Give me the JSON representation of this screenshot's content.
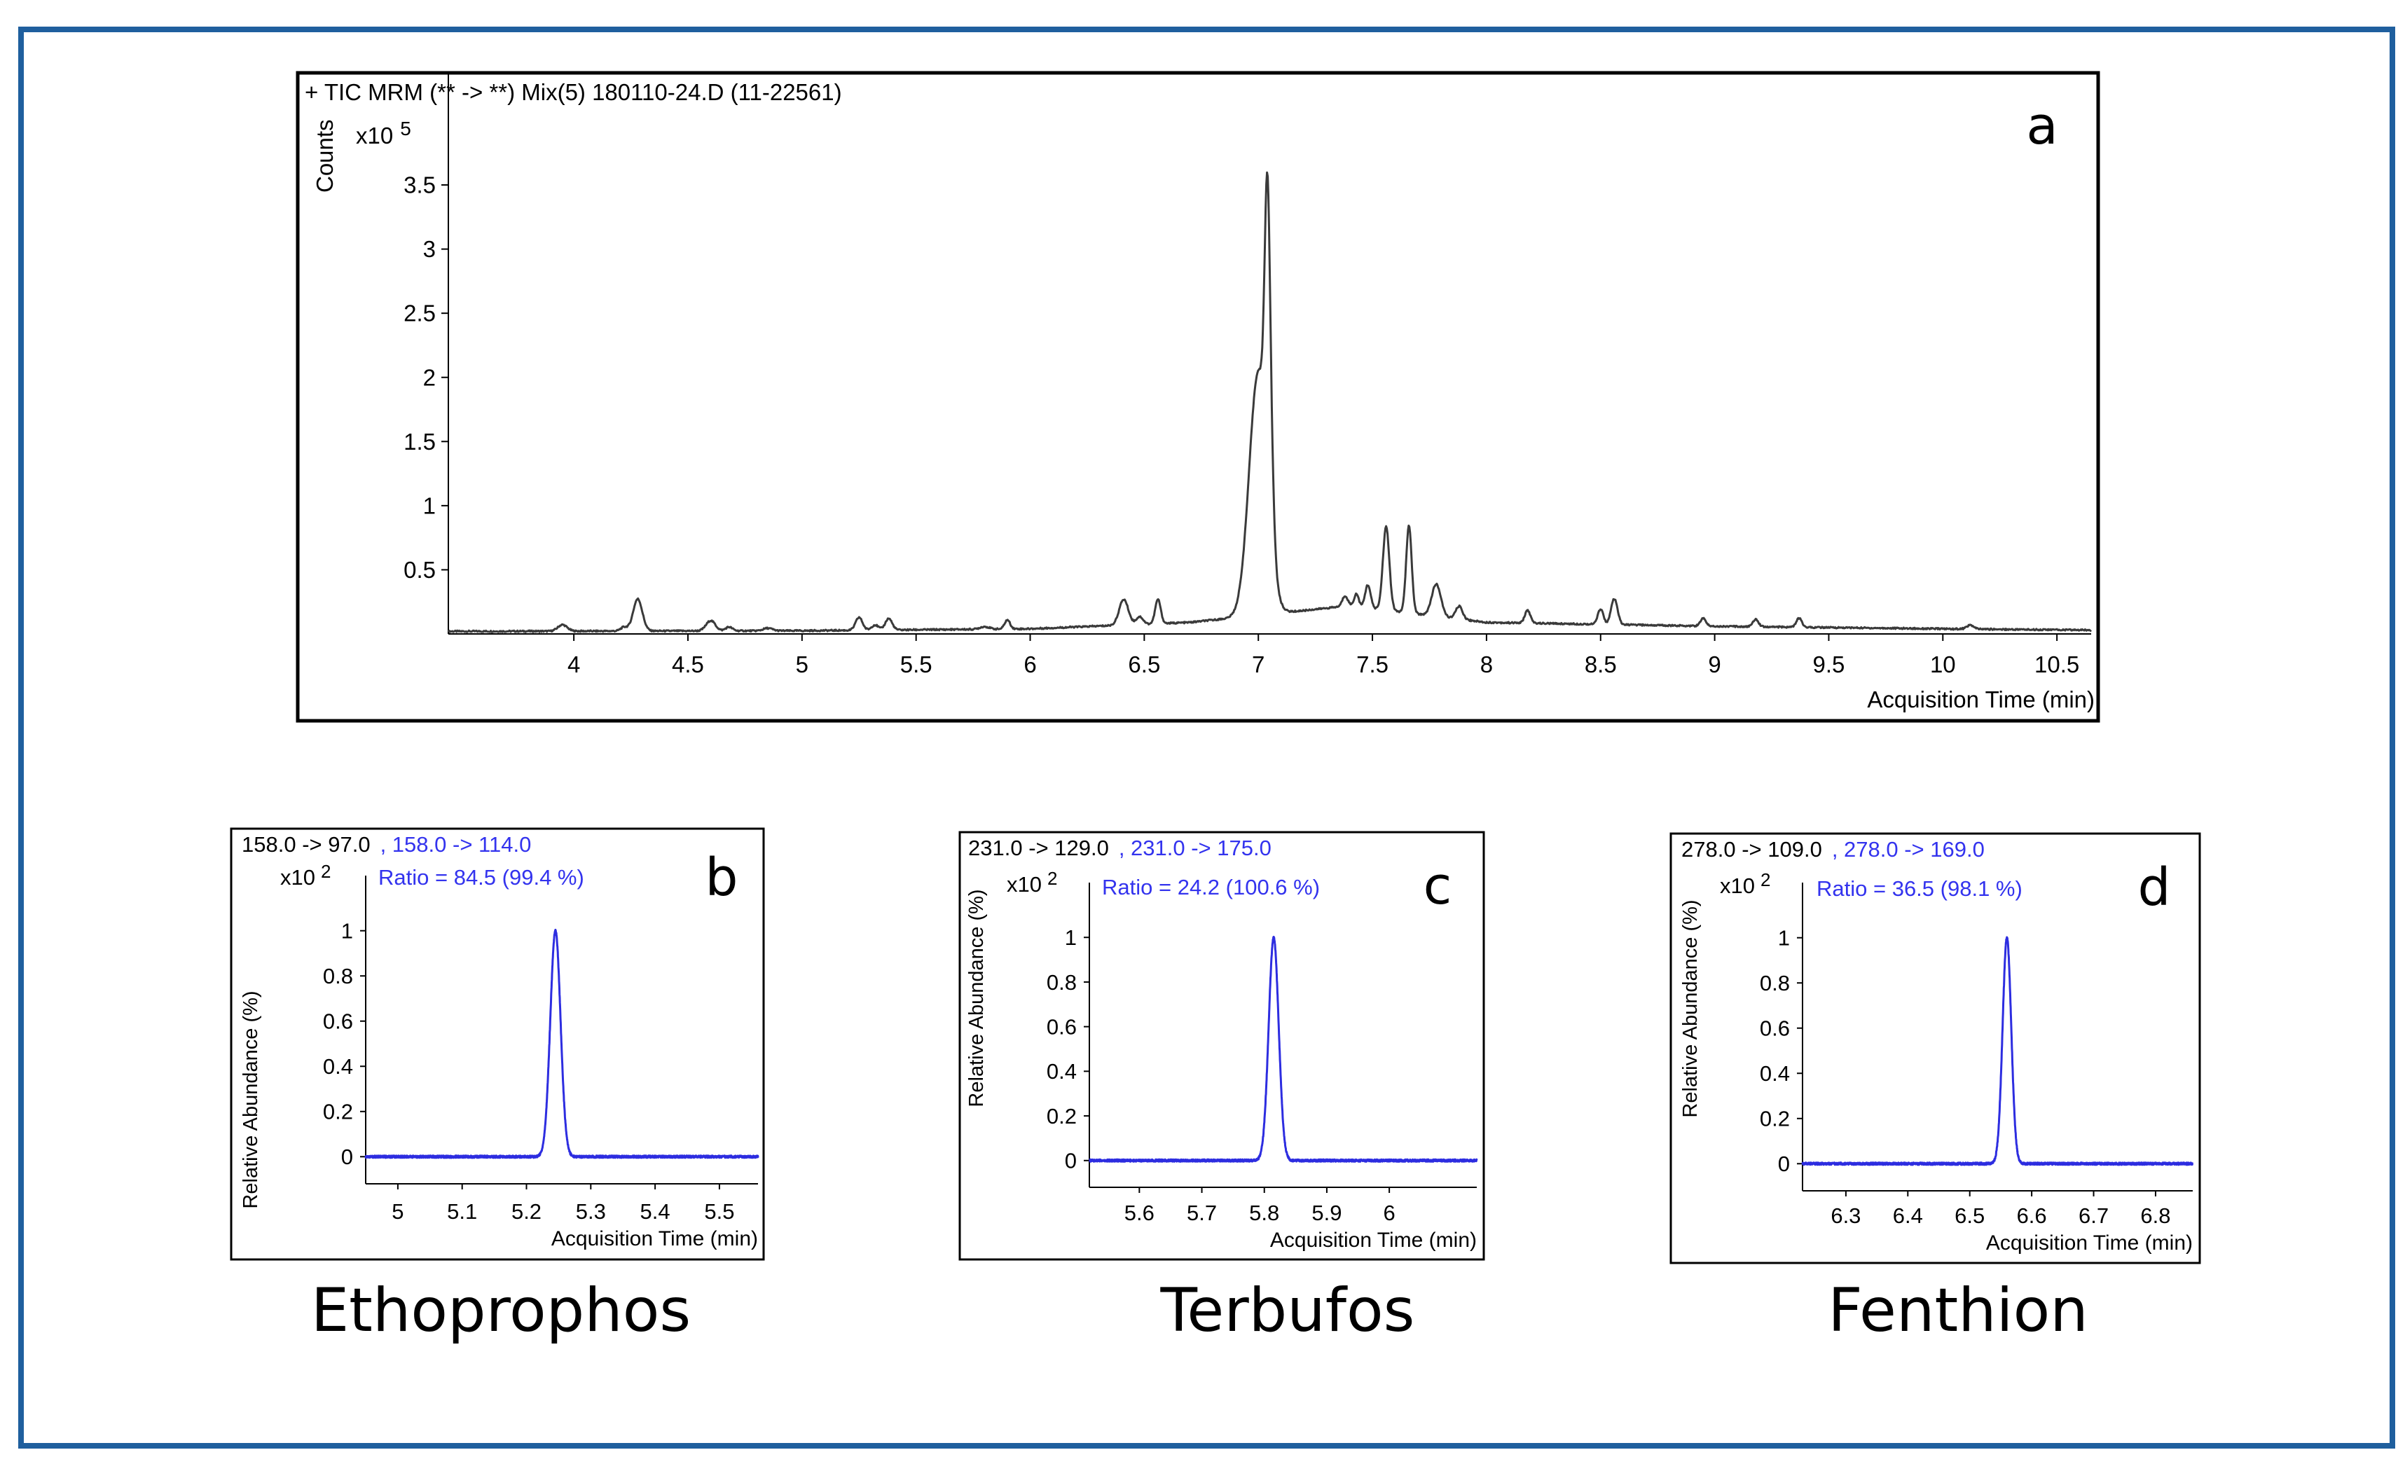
{
  "panels": [
    {
      "letter": "a",
      "header": "+ TIC MRM (** -> **) Mix(5) 180110-24.D (11-22561)",
      "multiplier_base": "x10",
      "multiplier_exp": "5",
      "ylabel": "Counts",
      "xlabel": "Acquisition Time (min)"
    },
    {
      "letter": "b",
      "transition_black": "158.0 -> 97.0",
      "transition_blue": ", 158.0 -> 114.0",
      "multiplier_base": "x10",
      "multiplier_exp": "2",
      "ratio": "Ratio = 84.5 (99.4 %)",
      "ylabel": "Relative Abundance (%)",
      "xlabel": "Acquisition Time (min)",
      "compound": "Ethoprophos"
    },
    {
      "letter": "c",
      "transition_black": "231.0 -> 129.0",
      "transition_blue": ", 231.0 -> 175.0",
      "multiplier_base": "x10",
      "multiplier_exp": "2",
      "ratio": "Ratio = 24.2 (100.6 %)",
      "ylabel": "Relative Abundance (%)",
      "xlabel": "Acquisition Time (min)",
      "compound": "Terbufos"
    },
    {
      "letter": "d",
      "transition_black": "278.0 -> 109.0",
      "transition_blue": ", 278.0 -> 169.0",
      "multiplier_base": "x10",
      "multiplier_exp": "2",
      "ratio": "Ratio = 36.5 (98.1 %)",
      "ylabel": "Relative Abundance (%)",
      "xlabel": "Acquisition Time (min)",
      "compound": "Fenthion"
    }
  ],
  "colors": {
    "frame": "#1f5f9e",
    "trace_main": "#3a3a3a",
    "trace_blue": "#2d2de0",
    "ratio_blue": "#3333ee"
  },
  "chart_data": [
    {
      "type": "line",
      "xlabel": "Acquisition Time (min)",
      "ylabel": "Counts",
      "xlim": [
        3.45,
        10.65
      ],
      "ylim": [
        0,
        4.15
      ],
      "xticks": [
        4,
        4.5,
        5,
        5.5,
        6,
        6.5,
        7,
        7.5,
        8,
        8.5,
        9,
        9.5,
        10,
        10.5
      ],
      "xtick_labels": [
        "4",
        "4.5",
        "5",
        "5.5",
        "6",
        "6.5",
        "7",
        "7.5",
        "8",
        "8.5",
        "9",
        "9.5",
        "10",
        "10.5"
      ],
      "yticks": [
        0.5,
        1,
        1.5,
        2,
        2.5,
        3,
        3.5
      ],
      "ytick_labels": [
        "0.5",
        "1",
        "1.5",
        "2",
        "2.5",
        "3",
        "3.5"
      ],
      "baseline": {
        "x": [
          3.45,
          5.0,
          6.0,
          6.7,
          7.4,
          8.0,
          9.0,
          10.0,
          10.65
        ],
        "y": [
          0.02,
          0.025,
          0.04,
          0.09,
          0.22,
          0.09,
          0.06,
          0.04,
          0.03
        ]
      },
      "peaks": [
        {
          "x": 3.95,
          "height": 0.05,
          "width": 0.02
        },
        {
          "x": 4.22,
          "height": 0.03,
          "width": 0.015
        },
        {
          "x": 4.28,
          "height": 0.25,
          "width": 0.02
        },
        {
          "x": 4.6,
          "height": 0.08,
          "width": 0.02
        },
        {
          "x": 4.68,
          "height": 0.03,
          "width": 0.015
        },
        {
          "x": 4.85,
          "height": 0.02,
          "width": 0.02
        },
        {
          "x": 5.25,
          "height": 0.1,
          "width": 0.015
        },
        {
          "x": 5.32,
          "height": 0.04,
          "width": 0.015
        },
        {
          "x": 5.38,
          "height": 0.09,
          "width": 0.015
        },
        {
          "x": 5.8,
          "height": 0.02,
          "width": 0.02
        },
        {
          "x": 5.9,
          "height": 0.07,
          "width": 0.012
        },
        {
          "x": 6.41,
          "height": 0.2,
          "width": 0.02
        },
        {
          "x": 6.48,
          "height": 0.06,
          "width": 0.015
        },
        {
          "x": 6.56,
          "height": 0.19,
          "width": 0.012
        },
        {
          "x": 7.0,
          "height": 1.9,
          "width": 0.04
        },
        {
          "x": 7.04,
          "height": 2.2,
          "width": 0.012
        },
        {
          "x": 7.06,
          "height": 0.35,
          "width": 0.012
        },
        {
          "x": 7.38,
          "height": 0.08,
          "width": 0.012
        },
        {
          "x": 7.43,
          "height": 0.1,
          "width": 0.01
        },
        {
          "x": 7.48,
          "height": 0.18,
          "width": 0.012
        },
        {
          "x": 7.56,
          "height": 0.65,
          "width": 0.014
        },
        {
          "x": 7.66,
          "height": 0.68,
          "width": 0.012
        },
        {
          "x": 7.78,
          "height": 0.25,
          "width": 0.02
        },
        {
          "x": 7.88,
          "height": 0.1,
          "width": 0.015
        },
        {
          "x": 8.18,
          "height": 0.1,
          "width": 0.012
        },
        {
          "x": 8.5,
          "height": 0.12,
          "width": 0.012
        },
        {
          "x": 8.56,
          "height": 0.2,
          "width": 0.014
        },
        {
          "x": 8.95,
          "height": 0.06,
          "width": 0.012
        },
        {
          "x": 9.18,
          "height": 0.06,
          "width": 0.012
        },
        {
          "x": 9.37,
          "height": 0.07,
          "width": 0.012
        },
        {
          "x": 10.12,
          "height": 0.03,
          "width": 0.015
        }
      ]
    },
    {
      "type": "line",
      "name": "Ethoprophos",
      "xlabel": "Acquisition Time (min)",
      "ylabel": "Relative Abundance (%)",
      "xlim": [
        4.95,
        5.56
      ],
      "ylim": [
        -0.12,
        1.12
      ],
      "xticks": [
        5,
        5.1,
        5.2,
        5.3,
        5.4,
        5.5
      ],
      "xtick_labels": [
        "5",
        "5.1",
        "5.2",
        "5.3",
        "5.4",
        "5.5"
      ],
      "yticks": [
        0,
        0.2,
        0.4,
        0.6,
        0.8,
        1
      ],
      "ytick_labels": [
        "0",
        "0.2",
        "0.4",
        "0.6",
        "0.8",
        "1"
      ],
      "peak_x": 5.245,
      "peak_height": 1.0,
      "peak_width": 0.008
    },
    {
      "type": "line",
      "name": "Terbufos",
      "xlabel": "Acquisition Time (min)",
      "ylabel": "Relative Abundance (%)",
      "xlim": [
        5.52,
        6.14
      ],
      "ylim": [
        -0.12,
        1.12
      ],
      "xticks": [
        5.6,
        5.7,
        5.8,
        5.9,
        6
      ],
      "xtick_labels": [
        "5.6",
        "5.7",
        "5.8",
        "5.9",
        "6"
      ],
      "yticks": [
        0,
        0.2,
        0.4,
        0.6,
        0.8,
        1
      ],
      "ytick_labels": [
        "0",
        "0.2",
        "0.4",
        "0.6",
        "0.8",
        "1"
      ],
      "peak_x": 5.815,
      "peak_height": 1.0,
      "peak_width": 0.008
    },
    {
      "type": "line",
      "name": "Fenthion",
      "xlabel": "Acquisition Time (min)",
      "ylabel": "Relative Abundance (%)",
      "xlim": [
        6.23,
        6.86
      ],
      "ylim": [
        -0.12,
        1.12
      ],
      "xticks": [
        6.3,
        6.4,
        6.5,
        6.6,
        6.7,
        6.8
      ],
      "xtick_labels": [
        "6.3",
        "6.4",
        "6.5",
        "6.6",
        "6.7",
        "6.8"
      ],
      "yticks": [
        0,
        0.2,
        0.4,
        0.6,
        0.8,
        1
      ],
      "ytick_labels": [
        "0",
        "0.2",
        "0.4",
        "0.6",
        "0.8",
        "1"
      ],
      "peak_x": 6.56,
      "peak_height": 1.0,
      "peak_width": 0.007
    }
  ]
}
